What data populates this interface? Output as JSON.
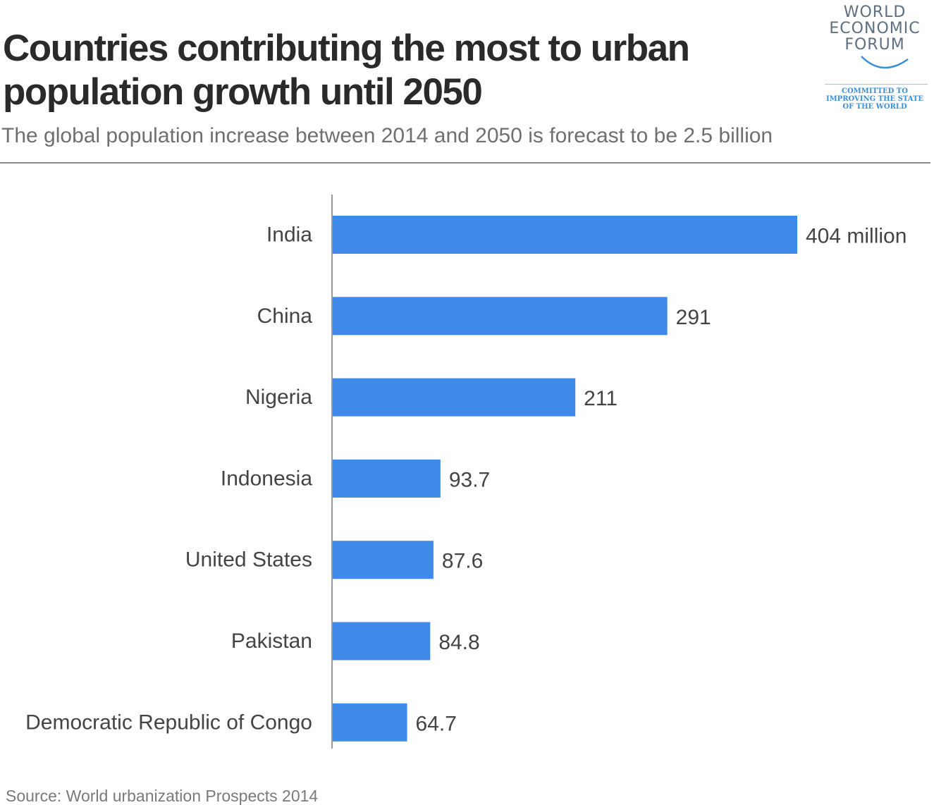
{
  "header": {
    "title_line1": "Countries contributing the most to urban",
    "title_line2": "population growth until 2050",
    "subtitle": "The global population increase between 2014 and 2050 is forecast to be 2.5 billion"
  },
  "logo": {
    "line1": "WORLD",
    "line2": "ECONOMIC",
    "line3": "FORUM",
    "tag1": "COMMITTED TO",
    "tag2": "IMPROVING THE STATE",
    "tag3": "OF THE WORLD"
  },
  "chart_data": {
    "type": "bar",
    "orientation": "horizontal",
    "title": "Countries contributing the most to urban population growth until 2050",
    "subtitle": "The global population increase between 2014 and 2050 is forecast to be 2.5 billion",
    "xlabel": "",
    "ylabel": "",
    "categories": [
      "India",
      "China",
      "Nigeria",
      "Indonesia",
      "United States",
      "Pakistan",
      "Democratic Republic of Congo"
    ],
    "values": [
      404,
      291,
      211,
      93.7,
      87.6,
      84.8,
      64.7
    ],
    "value_labels": [
      "404 million",
      "291",
      "211",
      "93.7",
      "87.6",
      "84.8",
      "64.7"
    ],
    "xlim": [
      0,
      404
    ],
    "grid": false,
    "legend": "none",
    "bar_color": "#3f89e8",
    "label_color": "#444444"
  },
  "footer": {
    "source": "Source: World urbanization Prospects 2014"
  }
}
